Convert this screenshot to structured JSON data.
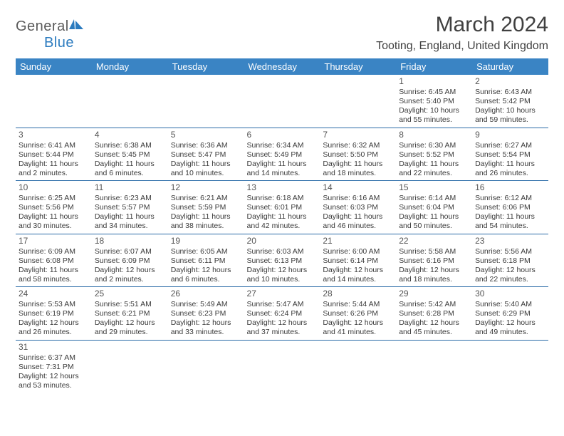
{
  "logo": {
    "text1": "General",
    "text2": "Blue"
  },
  "title": "March 2024",
  "location": "Tooting, England, United Kingdom",
  "colors": {
    "header_bg": "#3a84c4",
    "header_text": "#ffffff",
    "rule": "#2b6ca8",
    "body_text": "#3a3a3a",
    "title_text": "#404040",
    "logo_gray": "#5a5a5a",
    "logo_blue": "#2b7bbf"
  },
  "day_headers": [
    "Sunday",
    "Monday",
    "Tuesday",
    "Wednesday",
    "Thursday",
    "Friday",
    "Saturday"
  ],
  "weeks": [
    [
      null,
      null,
      null,
      null,
      null,
      {
        "n": "1",
        "sr": "6:45 AM",
        "ss": "5:40 PM",
        "dl": "10 hours and 55 minutes."
      },
      {
        "n": "2",
        "sr": "6:43 AM",
        "ss": "5:42 PM",
        "dl": "10 hours and 59 minutes."
      }
    ],
    [
      {
        "n": "3",
        "sr": "6:41 AM",
        "ss": "5:44 PM",
        "dl": "11 hours and 2 minutes."
      },
      {
        "n": "4",
        "sr": "6:38 AM",
        "ss": "5:45 PM",
        "dl": "11 hours and 6 minutes."
      },
      {
        "n": "5",
        "sr": "6:36 AM",
        "ss": "5:47 PM",
        "dl": "11 hours and 10 minutes."
      },
      {
        "n": "6",
        "sr": "6:34 AM",
        "ss": "5:49 PM",
        "dl": "11 hours and 14 minutes."
      },
      {
        "n": "7",
        "sr": "6:32 AM",
        "ss": "5:50 PM",
        "dl": "11 hours and 18 minutes."
      },
      {
        "n": "8",
        "sr": "6:30 AM",
        "ss": "5:52 PM",
        "dl": "11 hours and 22 minutes."
      },
      {
        "n": "9",
        "sr": "6:27 AM",
        "ss": "5:54 PM",
        "dl": "11 hours and 26 minutes."
      }
    ],
    [
      {
        "n": "10",
        "sr": "6:25 AM",
        "ss": "5:56 PM",
        "dl": "11 hours and 30 minutes."
      },
      {
        "n": "11",
        "sr": "6:23 AM",
        "ss": "5:57 PM",
        "dl": "11 hours and 34 minutes."
      },
      {
        "n": "12",
        "sr": "6:21 AM",
        "ss": "5:59 PM",
        "dl": "11 hours and 38 minutes."
      },
      {
        "n": "13",
        "sr": "6:18 AM",
        "ss": "6:01 PM",
        "dl": "11 hours and 42 minutes."
      },
      {
        "n": "14",
        "sr": "6:16 AM",
        "ss": "6:03 PM",
        "dl": "11 hours and 46 minutes."
      },
      {
        "n": "15",
        "sr": "6:14 AM",
        "ss": "6:04 PM",
        "dl": "11 hours and 50 minutes."
      },
      {
        "n": "16",
        "sr": "6:12 AM",
        "ss": "6:06 PM",
        "dl": "11 hours and 54 minutes."
      }
    ],
    [
      {
        "n": "17",
        "sr": "6:09 AM",
        "ss": "6:08 PM",
        "dl": "11 hours and 58 minutes."
      },
      {
        "n": "18",
        "sr": "6:07 AM",
        "ss": "6:09 PM",
        "dl": "12 hours and 2 minutes."
      },
      {
        "n": "19",
        "sr": "6:05 AM",
        "ss": "6:11 PM",
        "dl": "12 hours and 6 minutes."
      },
      {
        "n": "20",
        "sr": "6:03 AM",
        "ss": "6:13 PM",
        "dl": "12 hours and 10 minutes."
      },
      {
        "n": "21",
        "sr": "6:00 AM",
        "ss": "6:14 PM",
        "dl": "12 hours and 14 minutes."
      },
      {
        "n": "22",
        "sr": "5:58 AM",
        "ss": "6:16 PM",
        "dl": "12 hours and 18 minutes."
      },
      {
        "n": "23",
        "sr": "5:56 AM",
        "ss": "6:18 PM",
        "dl": "12 hours and 22 minutes."
      }
    ],
    [
      {
        "n": "24",
        "sr": "5:53 AM",
        "ss": "6:19 PM",
        "dl": "12 hours and 26 minutes."
      },
      {
        "n": "25",
        "sr": "5:51 AM",
        "ss": "6:21 PM",
        "dl": "12 hours and 29 minutes."
      },
      {
        "n": "26",
        "sr": "5:49 AM",
        "ss": "6:23 PM",
        "dl": "12 hours and 33 minutes."
      },
      {
        "n": "27",
        "sr": "5:47 AM",
        "ss": "6:24 PM",
        "dl": "12 hours and 37 minutes."
      },
      {
        "n": "28",
        "sr": "5:44 AM",
        "ss": "6:26 PM",
        "dl": "12 hours and 41 minutes."
      },
      {
        "n": "29",
        "sr": "5:42 AM",
        "ss": "6:28 PM",
        "dl": "12 hours and 45 minutes."
      },
      {
        "n": "30",
        "sr": "5:40 AM",
        "ss": "6:29 PM",
        "dl": "12 hours and 49 minutes."
      }
    ],
    [
      {
        "n": "31",
        "sr": "6:37 AM",
        "ss": "7:31 PM",
        "dl": "12 hours and 53 minutes."
      },
      null,
      null,
      null,
      null,
      null,
      null
    ]
  ],
  "labels": {
    "sunrise": "Sunrise:",
    "sunset": "Sunset:",
    "daylight": "Daylight:"
  }
}
